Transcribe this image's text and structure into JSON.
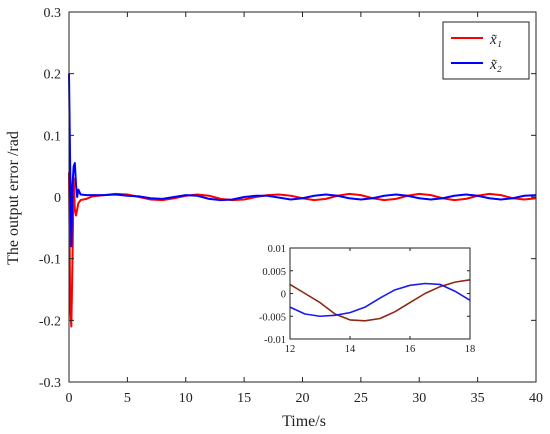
{
  "chart_data": [
    {
      "type": "line",
      "xlabel": "Time/s",
      "ylabel": "The output error /rad",
      "xlim": [
        0,
        40
      ],
      "ylim": [
        -0.3,
        0.3
      ],
      "x_ticks": [
        0,
        5,
        10,
        15,
        20,
        25,
        30,
        35,
        40
      ],
      "y_ticks": [
        0.3,
        0.2,
        0.1,
        0,
        -0.1,
        -0.2,
        -0.3
      ],
      "grid": false,
      "legend_position": "top-right",
      "series": [
        {
          "name": "x̃₁",
          "color": "#ff0000",
          "points": [
            [
              0,
              0.04
            ],
            [
              0.1,
              -0.18
            ],
            [
              0.2,
              -0.21
            ],
            [
              0.3,
              -0.1
            ],
            [
              0.4,
              0.03
            ],
            [
              0.5,
              -0.02
            ],
            [
              0.6,
              -0.03
            ],
            [
              0.8,
              -0.01
            ],
            [
              1.0,
              -0.005
            ],
            [
              1.5,
              -0.003
            ],
            [
              2,
              0.001
            ],
            [
              3,
              0.003
            ],
            [
              4,
              0.005
            ],
            [
              5,
              0.004
            ],
            [
              6,
              0.0
            ],
            [
              7,
              -0.004
            ],
            [
              8,
              -0.005
            ],
            [
              9,
              -0.002
            ],
            [
              10,
              0.002
            ],
            [
              11,
              0.004
            ],
            [
              12,
              0.002
            ],
            [
              13,
              -0.003
            ],
            [
              14,
              -0.005
            ],
            [
              15,
              -0.004
            ],
            [
              16,
              0.0
            ],
            [
              17,
              0.003
            ],
            [
              18,
              0.004
            ],
            [
              19,
              0.002
            ],
            [
              20,
              -0.002
            ],
            [
              21,
              -0.005
            ],
            [
              22,
              -0.003
            ],
            [
              23,
              0.002
            ],
            [
              24,
              0.005
            ],
            [
              25,
              0.003
            ],
            [
              26,
              -0.002
            ],
            [
              27,
              -0.005
            ],
            [
              28,
              -0.003
            ],
            [
              29,
              0.002
            ],
            [
              30,
              0.005
            ],
            [
              31,
              0.003
            ],
            [
              32,
              -0.002
            ],
            [
              33,
              -0.005
            ],
            [
              34,
              -0.003
            ],
            [
              35,
              0.002
            ],
            [
              36,
              0.005
            ],
            [
              37,
              0.003
            ],
            [
              38,
              -0.002
            ],
            [
              39,
              -0.004
            ],
            [
              40,
              -0.002
            ]
          ]
        },
        {
          "name": "x̃₂",
          "color": "#0000ff",
          "points": [
            [
              0,
              0.2
            ],
            [
              0.1,
              0.05
            ],
            [
              0.2,
              -0.08
            ],
            [
              0.3,
              0.02
            ],
            [
              0.4,
              0.05
            ],
            [
              0.5,
              0.055
            ],
            [
              0.6,
              0.02
            ],
            [
              0.7,
              0.0
            ],
            [
              0.8,
              0.012
            ],
            [
              0.9,
              0.008
            ],
            [
              1.0,
              0.004
            ],
            [
              1.5,
              0.003
            ],
            [
              2,
              0.003
            ],
            [
              3,
              0.003
            ],
            [
              4,
              0.004
            ],
            [
              5,
              0.002
            ],
            [
              6,
              0.001
            ],
            [
              7,
              -0.002
            ],
            [
              8,
              -0.003
            ],
            [
              9,
              0.0
            ],
            [
              10,
              0.003
            ],
            [
              11,
              0.002
            ],
            [
              12,
              -0.003
            ],
            [
              13,
              -0.005
            ],
            [
              14,
              -0.004
            ],
            [
              15,
              0.0
            ],
            [
              16,
              0.002
            ],
            [
              17,
              0.002
            ],
            [
              18,
              -0.001
            ],
            [
              19,
              -0.004
            ],
            [
              20,
              -0.002
            ],
            [
              21,
              0.002
            ],
            [
              22,
              0.004
            ],
            [
              23,
              0.002
            ],
            [
              24,
              -0.002
            ],
            [
              25,
              -0.004
            ],
            [
              26,
              -0.002
            ],
            [
              27,
              0.002
            ],
            [
              28,
              0.004
            ],
            [
              29,
              0.002
            ],
            [
              30,
              -0.002
            ],
            [
              31,
              -0.004
            ],
            [
              32,
              -0.002
            ],
            [
              33,
              0.002
            ],
            [
              34,
              0.004
            ],
            [
              35,
              0.002
            ],
            [
              36,
              -0.002
            ],
            [
              37,
              -0.004
            ],
            [
              38,
              -0.002
            ],
            [
              39,
              0.002
            ],
            [
              40,
              0.003
            ]
          ]
        }
      ]
    },
    {
      "type": "line",
      "role": "inset",
      "xlim": [
        12,
        18
      ],
      "ylim": [
        -0.01,
        0.01
      ],
      "x_ticks": [
        12,
        14,
        16,
        18
      ],
      "y_ticks": [
        0.01,
        0.005,
        0,
        -0.005,
        -0.01
      ],
      "x_tick_labels": [
        "12",
        "14",
        "16",
        "18"
      ],
      "y_tick_labels": [
        "0.01",
        "0.005",
        "0",
        "-0.005",
        "-0.01"
      ],
      "series": [
        {
          "color": "#8b2a10",
          "points": [
            [
              12,
              0.002
            ],
            [
              12.5,
              0.0
            ],
            [
              13,
              -0.002
            ],
            [
              13.5,
              -0.0045
            ],
            [
              14,
              -0.0058
            ],
            [
              14.5,
              -0.006
            ],
            [
              15,
              -0.0055
            ],
            [
              15.5,
              -0.004
            ],
            [
              16,
              -0.002
            ],
            [
              16.5,
              0.0
            ],
            [
              17,
              0.0015
            ],
            [
              17.5,
              0.0025
            ],
            [
              18,
              0.003
            ]
          ]
        },
        {
          "color": "#1a1aee",
          "points": [
            [
              12,
              -0.003
            ],
            [
              12.5,
              -0.0045
            ],
            [
              13,
              -0.005
            ],
            [
              13.5,
              -0.0048
            ],
            [
              14,
              -0.0042
            ],
            [
              14.5,
              -0.003
            ],
            [
              15,
              -0.001
            ],
            [
              15.5,
              0.0008
            ],
            [
              16,
              0.0018
            ],
            [
              16.5,
              0.0022
            ],
            [
              17,
              0.002
            ],
            [
              17.5,
              0.0005
            ],
            [
              18,
              -0.0015
            ]
          ]
        }
      ]
    }
  ]
}
